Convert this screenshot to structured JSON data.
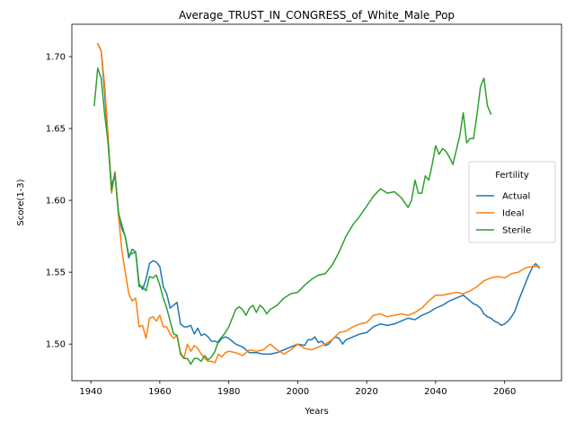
{
  "chart_data": {
    "type": "line",
    "title": "Average_TRUST_IN_CONGRESS_of_White_Male_Pop",
    "xlabel": "Years",
    "ylabel": "Score(1-3)",
    "xlim": [
      1934.5,
      2076.5
    ],
    "ylim": [
      1.4745,
      1.7225
    ],
    "xticks": [
      1940,
      1960,
      1980,
      2000,
      2020,
      2040,
      2060
    ],
    "yticks": [
      1.5,
      1.55,
      1.6,
      1.65,
      1.7
    ],
    "ytick_labels": [
      "1.50",
      "1.55",
      "1.60",
      "1.65",
      "1.70"
    ],
    "grid": false,
    "legend": {
      "title": "Fertility",
      "placement": "center-right"
    },
    "series": [
      {
        "name": "Actual",
        "color": "#1f77b4",
        "x": [
          1942,
          1943,
          1944,
          1945,
          1946,
          1947,
          1948,
          1949,
          1950,
          1951,
          1952,
          1953,
          1954,
          1955,
          1956,
          1957,
          1958,
          1959,
          1960,
          1961,
          1962,
          1963,
          1964,
          1965,
          1966,
          1967,
          1968,
          1969,
          1970,
          1971,
          1972,
          1973,
          1974,
          1975,
          1976,
          1977,
          1978,
          1979,
          1980,
          1982,
          1984,
          1986,
          1988,
          1990,
          1992,
          1994,
          1996,
          1998,
          2000,
          2002,
          2003,
          2004,
          2005,
          2006,
          2007,
          2008,
          2009,
          2010,
          2011,
          2012,
          2013,
          2014,
          2016,
          2018,
          2020,
          2022,
          2024,
          2026,
          2028,
          2030,
          2032,
          2034,
          2036,
          2038,
          2040,
          2042,
          2044,
          2046,
          2048,
          2049,
          2050,
          2051,
          2052,
          2053,
          2054,
          2055,
          2056,
          2057,
          2058,
          2059,
          2060,
          2061,
          2062,
          2063,
          2064,
          2065,
          2066,
          2067,
          2068,
          2069,
          2070
        ],
        "y": [
          1.709,
          1.704,
          1.675,
          1.64,
          1.61,
          1.618,
          1.592,
          1.58,
          1.575,
          1.56,
          1.566,
          1.564,
          1.542,
          1.538,
          1.545,
          1.556,
          1.558,
          1.557,
          1.554,
          1.54,
          1.535,
          1.525,
          1.527,
          1.529,
          1.514,
          1.512,
          1.512,
          1.513,
          1.507,
          1.511,
          1.506,
          1.507,
          1.505,
          1.502,
          1.502,
          1.501,
          1.504,
          1.505,
          1.504,
          1.5,
          1.498,
          1.494,
          1.494,
          1.493,
          1.493,
          1.494,
          1.496,
          1.498,
          1.5,
          1.499,
          1.503,
          1.503,
          1.505,
          1.501,
          1.502,
          1.499,
          1.5,
          1.503,
          1.505,
          1.504,
          1.5,
          1.503,
          1.505,
          1.507,
          1.508,
          1.512,
          1.514,
          1.513,
          1.514,
          1.516,
          1.518,
          1.517,
          1.52,
          1.522,
          1.525,
          1.527,
          1.53,
          1.532,
          1.534,
          1.532,
          1.53,
          1.528,
          1.527,
          1.525,
          1.521,
          1.519,
          1.518,
          1.516,
          1.515,
          1.513,
          1.514,
          1.516,
          1.519,
          1.523,
          1.53,
          1.536,
          1.542,
          1.548,
          1.553,
          1.556,
          1.553
        ]
      },
      {
        "name": "Ideal",
        "color": "#ff7f0e",
        "x": [
          1942,
          1943,
          1944,
          1945,
          1946,
          1947,
          1948,
          1949,
          1950,
          1951,
          1952,
          1953,
          1954,
          1955,
          1956,
          1957,
          1958,
          1959,
          1960,
          1961,
          1962,
          1963,
          1964,
          1965,
          1966,
          1967,
          1968,
          1969,
          1970,
          1971,
          1972,
          1973,
          1974,
          1975,
          1976,
          1977,
          1978,
          1979,
          1980,
          1982,
          1984,
          1986,
          1988,
          1990,
          1992,
          1994,
          1996,
          1998,
          2000,
          2002,
          2004,
          2006,
          2008,
          2010,
          2012,
          2014,
          2016,
          2018,
          2020,
          2022,
          2024,
          2026,
          2028,
          2030,
          2032,
          2034,
          2036,
          2038,
          2040,
          2042,
          2044,
          2046,
          2048,
          2050,
          2052,
          2054,
          2056,
          2058,
          2060,
          2062,
          2064,
          2066,
          2068,
          2070
        ],
        "y": [
          1.709,
          1.704,
          1.68,
          1.645,
          1.605,
          1.62,
          1.59,
          1.565,
          1.55,
          1.535,
          1.53,
          1.532,
          1.512,
          1.513,
          1.504,
          1.518,
          1.519,
          1.516,
          1.52,
          1.512,
          1.512,
          1.507,
          1.504,
          1.506,
          1.494,
          1.49,
          1.5,
          1.495,
          1.499,
          1.497,
          1.493,
          1.49,
          1.488,
          1.488,
          1.487,
          1.493,
          1.491,
          1.494,
          1.495,
          1.494,
          1.492,
          1.496,
          1.495,
          1.496,
          1.5,
          1.496,
          1.493,
          1.496,
          1.5,
          1.497,
          1.496,
          1.498,
          1.5,
          1.503,
          1.508,
          1.509,
          1.512,
          1.514,
          1.515,
          1.52,
          1.521,
          1.519,
          1.52,
          1.521,
          1.52,
          1.522,
          1.525,
          1.53,
          1.534,
          1.534,
          1.535,
          1.536,
          1.535,
          1.537,
          1.54,
          1.544,
          1.546,
          1.547,
          1.546,
          1.549,
          1.55,
          1.553,
          1.554,
          1.554
        ]
      },
      {
        "name": "Sterile",
        "color": "#2ca02c",
        "x": [
          1941,
          1942,
          1943,
          1944,
          1945,
          1946,
          1947,
          1948,
          1949,
          1950,
          1951,
          1952,
          1953,
          1954,
          1955,
          1956,
          1957,
          1958,
          1959,
          1960,
          1961,
          1962,
          1963,
          1964,
          1965,
          1966,
          1967,
          1968,
          1969,
          1970,
          1971,
          1972,
          1973,
          1974,
          1975,
          1976,
          1977,
          1978,
          1979,
          1980,
          1981,
          1982,
          1983,
          1984,
          1985,
          1986,
          1987,
          1988,
          1989,
          1990,
          1991,
          1992,
          1994,
          1996,
          1998,
          2000,
          2002,
          2004,
          2006,
          2008,
          2010,
          2012,
          2014,
          2016,
          2018,
          2020,
          2022,
          2024,
          2026,
          2028,
          2030,
          2032,
          2033,
          2034,
          2035,
          2036,
          2037,
          2038,
          2039,
          2040,
          2041,
          2042,
          2043,
          2044,
          2045,
          2046,
          2047,
          2048,
          2049,
          2050,
          2051,
          2052,
          2053,
          2054,
          2055,
          2056
        ],
        "y": [
          1.666,
          1.692,
          1.685,
          1.66,
          1.64,
          1.607,
          1.619,
          1.591,
          1.583,
          1.574,
          1.562,
          1.563,
          1.564,
          1.54,
          1.54,
          1.537,
          1.547,
          1.546,
          1.548,
          1.541,
          1.532,
          1.525,
          1.516,
          1.507,
          1.506,
          1.493,
          1.49,
          1.49,
          1.486,
          1.49,
          1.49,
          1.488,
          1.492,
          1.489,
          1.491,
          1.495,
          1.502,
          1.505,
          1.508,
          1.512,
          1.518,
          1.524,
          1.526,
          1.524,
          1.52,
          1.525,
          1.527,
          1.522,
          1.527,
          1.525,
          1.521,
          1.524,
          1.527,
          1.532,
          1.535,
          1.536,
          1.541,
          1.545,
          1.548,
          1.549,
          1.555,
          1.564,
          1.575,
          1.583,
          1.589,
          1.596,
          1.603,
          1.608,
          1.605,
          1.606,
          1.602,
          1.595,
          1.6,
          1.614,
          1.605,
          1.605,
          1.617,
          1.614,
          1.625,
          1.638,
          1.632,
          1.636,
          1.634,
          1.63,
          1.625,
          1.635,
          1.645,
          1.661,
          1.64,
          1.643,
          1.643,
          1.66,
          1.679,
          1.685,
          1.666,
          1.66
        ]
      }
    ]
  }
}
